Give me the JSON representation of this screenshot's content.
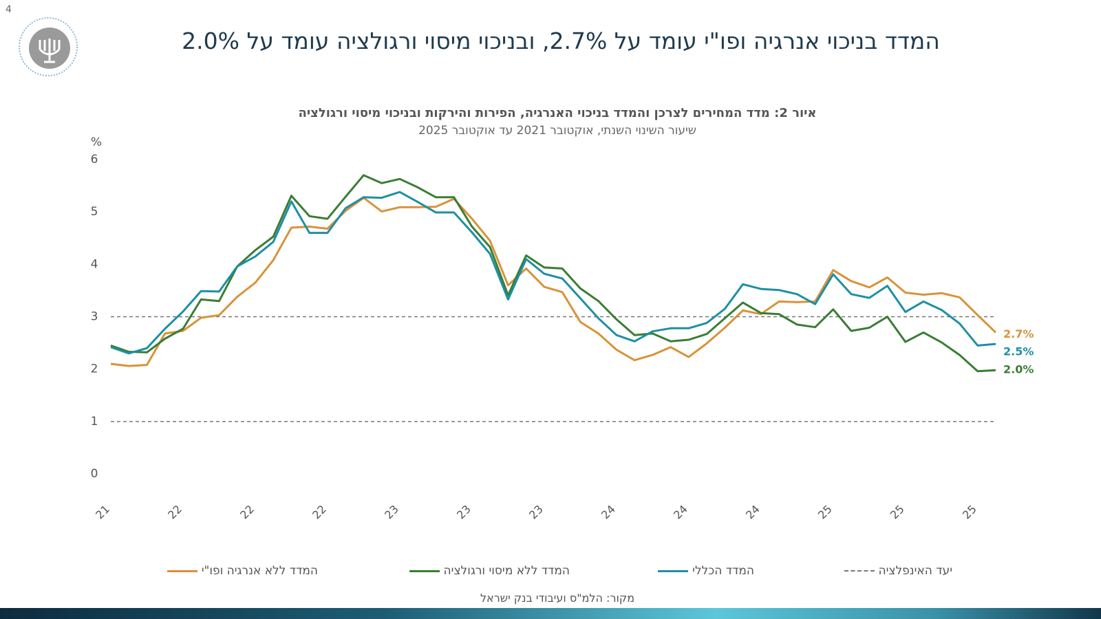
{
  "slide": {
    "page_number": "4",
    "title": "המדד בניכוי אנרגיה ופו\"י עומד על 2.7%, ובניכוי מיסוי ורגולציה עומד על 2.0%"
  },
  "chart_data": {
    "type": "line",
    "title": "איור 2: מדד המחירים לצרכן והמדד בניכוי האנרגיה, הפירות והירקות ובניכוי מיסוי ורגולציה",
    "subtitle": "שיעור השינוי השנתי, אוקטובר 2021 עד אוקטובר 2025",
    "y_label": "%",
    "source": "מקור: הלמ\"ס ועיבודי בנק ישראל",
    "categories": [
      "21",
      null,
      null,
      null,
      "22",
      null,
      null,
      null,
      "22",
      null,
      null,
      null,
      "22",
      null,
      null,
      null,
      "23",
      null,
      null,
      null,
      "23",
      null,
      null,
      null,
      "23",
      null,
      null,
      null,
      "24",
      null,
      null,
      null,
      "24",
      null,
      null,
      null,
      "24",
      null,
      null,
      null,
      "25",
      null,
      null,
      null,
      "25",
      null,
      null,
      null,
      "25",
      null
    ],
    "ylim": [
      0,
      6
    ],
    "yticks": [
      0,
      1,
      2,
      3,
      4,
      5,
      6
    ],
    "grid": false,
    "series": [
      {
        "name": "המדד ללא אנרגיה ופו\"י",
        "color": "#d9923a",
        "end_label": "2.7%",
        "values": [
          2.1,
          2.06,
          2.08,
          2.68,
          2.73,
          2.98,
          3.03,
          3.38,
          3.65,
          4.08,
          4.7,
          4.72,
          4.68,
          5.02,
          5.27,
          5.01,
          5.09,
          5.09,
          5.1,
          5.25,
          4.87,
          4.45,
          3.6,
          3.92,
          3.57,
          3.47,
          2.9,
          2.68,
          2.37,
          2.17,
          2.27,
          2.42,
          2.23,
          2.49,
          2.79,
          3.12,
          3.05,
          3.29,
          3.28,
          3.29,
          3.89,
          3.68,
          3.56,
          3.75,
          3.46,
          3.42,
          3.45,
          3.37,
          3.03,
          2.7
        ]
      },
      {
        "name": "המדד ללא מיסוי ורגולציה",
        "color": "#3a7d34",
        "end_label": "2.0%",
        "values": [
          2.45,
          2.33,
          2.32,
          2.58,
          2.77,
          3.33,
          3.3,
          3.96,
          4.27,
          4.53,
          5.31,
          4.92,
          4.87,
          5.29,
          5.7,
          5.55,
          5.63,
          5.47,
          5.28,
          5.28,
          4.72,
          4.33,
          3.41,
          4.17,
          3.94,
          3.92,
          3.54,
          3.3,
          2.95,
          2.65,
          2.68,
          2.53,
          2.56,
          2.67,
          2.97,
          3.27,
          3.07,
          3.05,
          2.85,
          2.8,
          3.14,
          2.73,
          2.79,
          3.0,
          2.52,
          2.7,
          2.51,
          2.27,
          1.96,
          1.98
        ]
      },
      {
        "name": "המדד הכללי",
        "color": "#1e8fa3",
        "end_label": "2.5%",
        "values": [
          2.42,
          2.3,
          2.4,
          2.77,
          3.1,
          3.49,
          3.48,
          3.96,
          4.15,
          4.43,
          5.2,
          4.6,
          4.6,
          5.07,
          5.28,
          5.27,
          5.38,
          5.19,
          4.99,
          4.99,
          4.61,
          4.2,
          3.33,
          4.1,
          3.82,
          3.73,
          3.35,
          2.97,
          2.65,
          2.53,
          2.72,
          2.78,
          2.78,
          2.88,
          3.15,
          3.62,
          3.53,
          3.51,
          3.43,
          3.24,
          3.81,
          3.43,
          3.36,
          3.59,
          3.09,
          3.29,
          3.13,
          2.87,
          2.45,
          2.48
        ]
      }
    ],
    "target": {
      "name": "יעד האינפלציה",
      "color": "#777777",
      "values": [
        1,
        3
      ]
    }
  }
}
